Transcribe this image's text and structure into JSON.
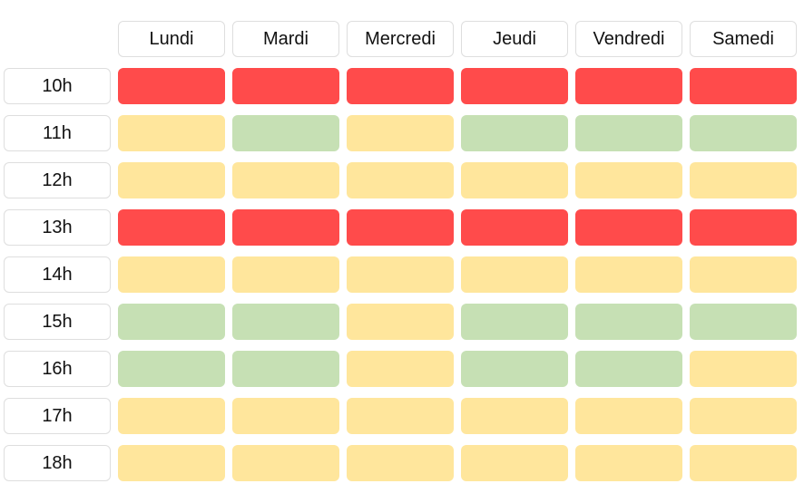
{
  "days": [
    "Lundi",
    "Mardi",
    "Mercredi",
    "Jeudi",
    "Vendredi",
    "Samedi"
  ],
  "hours": [
    "10h",
    "11h",
    "12h",
    "13h",
    "14h",
    "15h",
    "16h",
    "17h",
    "18h"
  ],
  "status_colors": {
    "red": "#ff4b4b",
    "yellow": "#ffe69c",
    "green": "#c6e0b4"
  },
  "matrix": [
    [
      "red",
      "red",
      "red",
      "red",
      "red",
      "red"
    ],
    [
      "yellow",
      "green",
      "yellow",
      "green",
      "green",
      "green"
    ],
    [
      "yellow",
      "yellow",
      "yellow",
      "yellow",
      "yellow",
      "yellow"
    ],
    [
      "red",
      "red",
      "red",
      "red",
      "red",
      "red"
    ],
    [
      "yellow",
      "yellow",
      "yellow",
      "yellow",
      "yellow",
      "yellow"
    ],
    [
      "green",
      "green",
      "yellow",
      "green",
      "green",
      "green"
    ],
    [
      "green",
      "green",
      "yellow",
      "green",
      "green",
      "yellow"
    ],
    [
      "yellow",
      "yellow",
      "yellow",
      "yellow",
      "yellow",
      "yellow"
    ],
    [
      "yellow",
      "yellow",
      "yellow",
      "yellow",
      "yellow",
      "yellow"
    ]
  ]
}
